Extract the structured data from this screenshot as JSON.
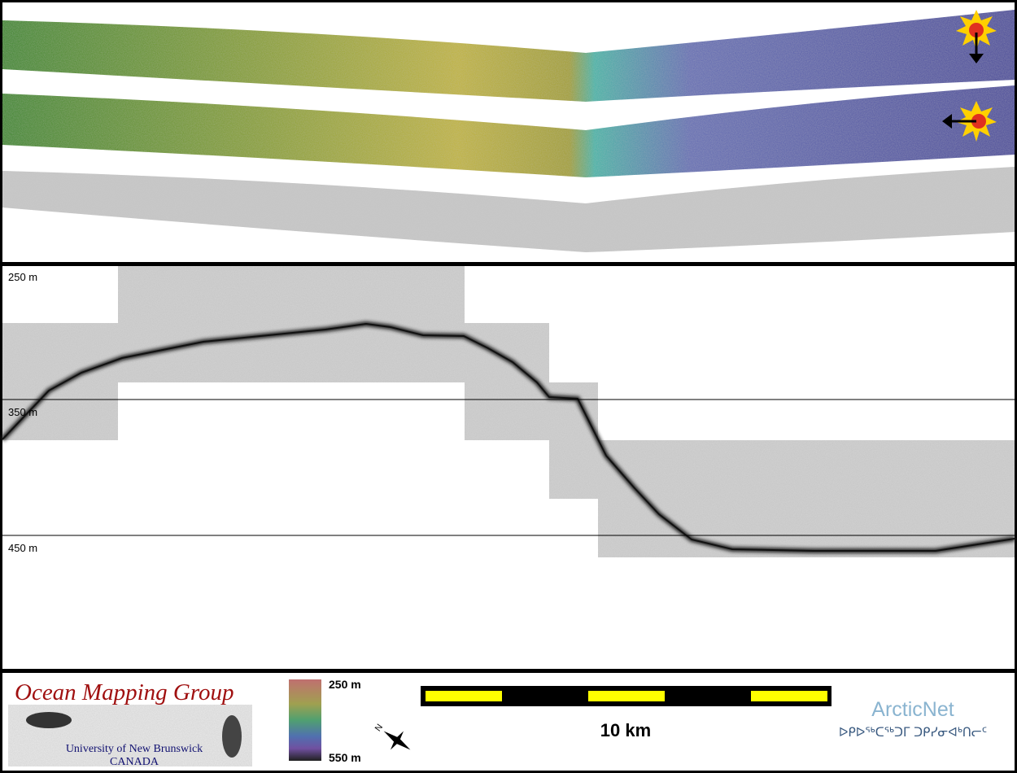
{
  "depth_labels": [
    "250 m",
    "350 m",
    "450 m"
  ],
  "logo": {
    "title": "Ocean Mapping Group",
    "university": "University of New Brunswick",
    "country": "CANADA"
  },
  "colorbar": {
    "top_label": "250 m",
    "bottom_label": "550 m"
  },
  "scale_bar": {
    "label": "10 km"
  },
  "partner": {
    "name": "ArcticNet",
    "syllabics": "ᐅᑭᐅᖅᑕᖅᑐᒥ ᑐᑭᓯᓂᐊᒃᑎᓕᑦ"
  }
}
